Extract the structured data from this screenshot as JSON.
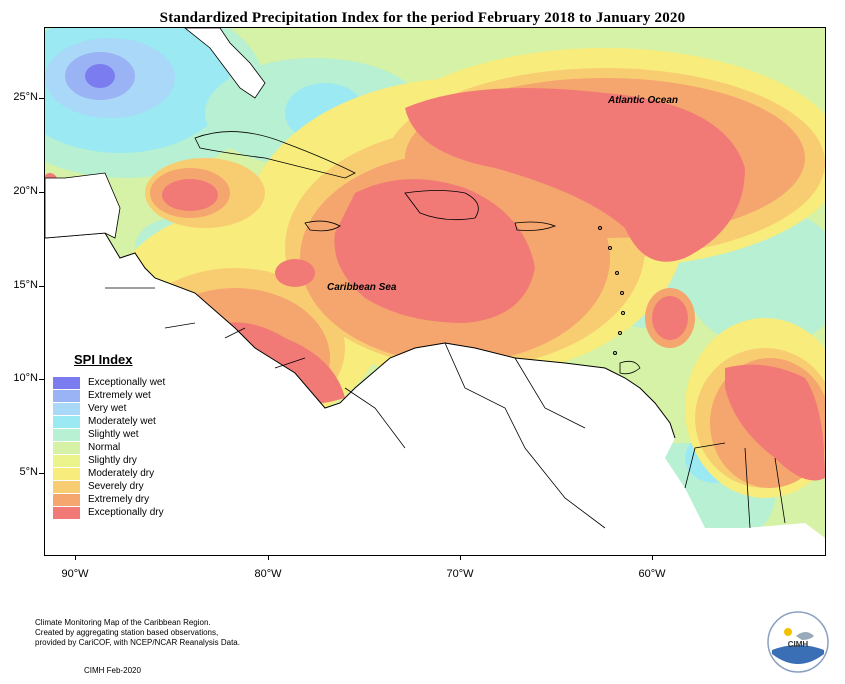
{
  "title": "Standardized Precipitation Index for the period February 2018 to January 2020",
  "map": {
    "ocean_labels": [
      "Atlantic Ocean",
      "Caribbean Sea"
    ],
    "lat_labels": [
      "25°N",
      "20°N",
      "15°N",
      "10°N",
      "5°N"
    ],
    "lon_labels": [
      "90°W",
      "80°W",
      "70°W",
      "60°W"
    ]
  },
  "legend": {
    "title": "SPI Index",
    "items": [
      {
        "label": "Exceptionally wet",
        "color": "#7a7cf0"
      },
      {
        "label": "Extremely wet",
        "color": "#9ab3f5"
      },
      {
        "label": "Very wet",
        "color": "#a9d8f8"
      },
      {
        "label": "Moderately wet",
        "color": "#9be9f2"
      },
      {
        "label": "Slightly wet",
        "color": "#b7f0d2"
      },
      {
        "label": "Normal",
        "color": "#d5f2a6"
      },
      {
        "label": "Slightly dry",
        "color": "#eaf48a"
      },
      {
        "label": "Moderately dry",
        "color": "#f8ec7c"
      },
      {
        "label": "Severely dry",
        "color": "#f8cd72"
      },
      {
        "label": "Extremely dry",
        "color": "#f5a56e"
      },
      {
        "label": "Exceptionally dry",
        "color": "#f17a76"
      }
    ]
  },
  "footer": {
    "lines": [
      "Climate Monitoring Map of the Caribbean Region.",
      "Created by aggregating station based observations,",
      "provided by CariCOF, with NCEP/NCAR Reanalysis Data."
    ],
    "credit": "CIMH Feb-2020"
  },
  "logo": {
    "text": "CIMH"
  }
}
